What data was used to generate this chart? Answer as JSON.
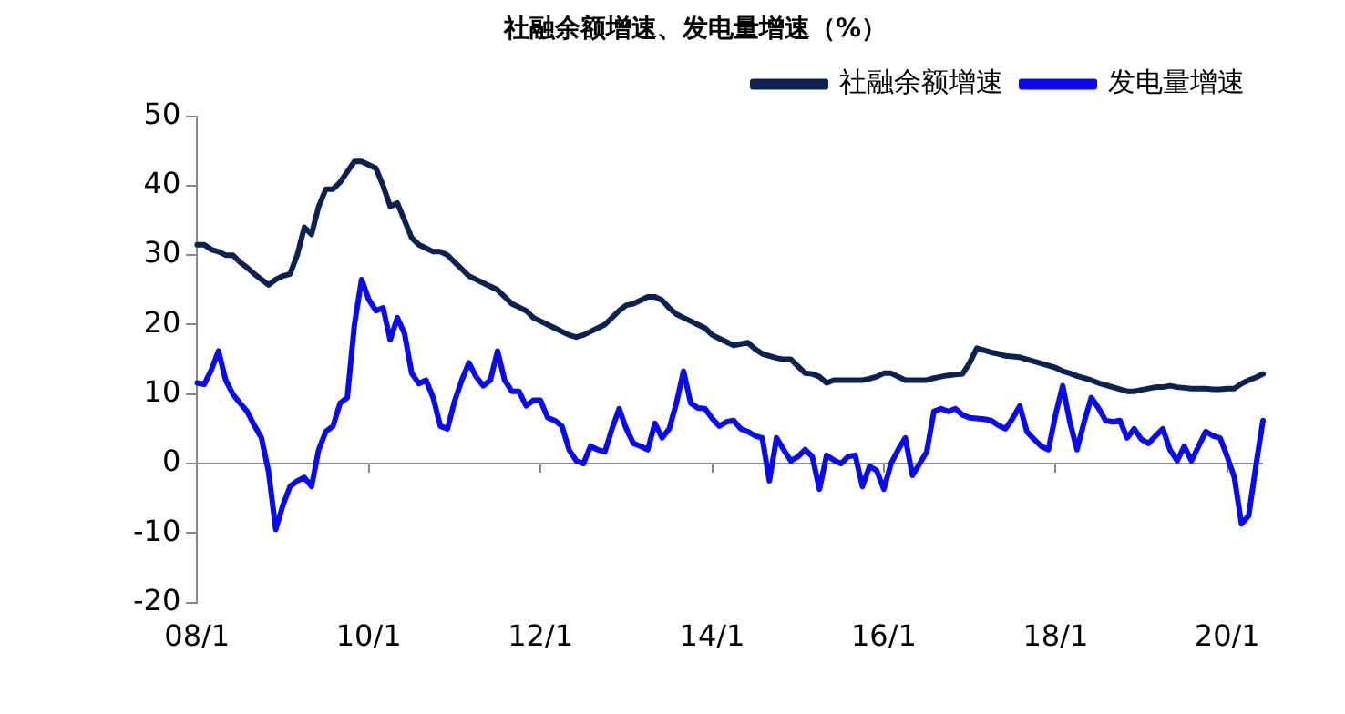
{
  "chart_data": {
    "type": "line",
    "title": "社融余额增速、发电量增速（%）",
    "categories": [
      "08/1",
      null,
      null,
      null,
      null,
      null,
      null,
      null,
      null,
      null,
      null,
      null,
      null,
      null,
      null,
      null,
      null,
      null,
      null,
      null,
      null,
      null,
      null,
      null,
      "10/1",
      null,
      null,
      null,
      null,
      null,
      null,
      null,
      null,
      null,
      null,
      null,
      null,
      null,
      null,
      null,
      null,
      null,
      null,
      null,
      null,
      null,
      null,
      null,
      "12/1",
      null,
      null,
      null,
      null,
      null,
      null,
      null,
      null,
      null,
      null,
      null,
      null,
      null,
      null,
      null,
      null,
      null,
      null,
      null,
      null,
      null,
      null,
      null,
      "14/1",
      null,
      null,
      null,
      null,
      null,
      null,
      null,
      null,
      null,
      null,
      null,
      null,
      null,
      null,
      null,
      null,
      null,
      null,
      null,
      null,
      null,
      null,
      null,
      "16/1",
      null,
      null,
      null,
      null,
      null,
      null,
      null,
      null,
      null,
      null,
      null,
      null,
      null,
      null,
      null,
      null,
      null,
      null,
      null,
      null,
      null,
      null,
      null,
      "18/1",
      null,
      null,
      null,
      null,
      null,
      null,
      null,
      null,
      null,
      null,
      null,
      null,
      null,
      null,
      null,
      null,
      null,
      null,
      null,
      null,
      null,
      null,
      null,
      "20/1",
      null,
      null,
      null,
      null,
      null
    ],
    "series": [
      {
        "name": "社融余额增速",
        "color": "#0d2150",
        "values": [
          31.5,
          31.5,
          30.8,
          30.5,
          30,
          30,
          29,
          28.2,
          27.3,
          26.5,
          25.7,
          26.5,
          27,
          27.3,
          30,
          34,
          33,
          37,
          39.5,
          39.5,
          40.5,
          42,
          43.5,
          43.5,
          43,
          42.5,
          40,
          37,
          37.5,
          35,
          32.5,
          31.5,
          31,
          30.5,
          30.5,
          30,
          29,
          28,
          27,
          26.5,
          26,
          25.5,
          25,
          24,
          23,
          22.5,
          22,
          21,
          20.5,
          20,
          19.5,
          19,
          18.5,
          18.2,
          18.5,
          19,
          19.5,
          20,
          21,
          22,
          22.8,
          23,
          23.5,
          24,
          24,
          23.5,
          22.4,
          21.5,
          21,
          20.5,
          20,
          19.5,
          18.5,
          18,
          17.5,
          17,
          17.2,
          17.4,
          16.5,
          15.8,
          15.5,
          15.2,
          15,
          15,
          14,
          13,
          12.9,
          12.5,
          11.6,
          12,
          12,
          12,
          12,
          12,
          12.2,
          12.5,
          13,
          13,
          12.5,
          12,
          12,
          12,
          12,
          12.3,
          12.5,
          12.7,
          12.8,
          12.9,
          14.5,
          16.6,
          16.3,
          16,
          15.8,
          15.5,
          15.4,
          15.3,
          15,
          14.7,
          14.4,
          14.1,
          13.8,
          13.3,
          13,
          12.6,
          12.3,
          12,
          11.6,
          11.3,
          11,
          10.7,
          10.4,
          10.4,
          10.6,
          10.8,
          11,
          11,
          11.2,
          11,
          10.9,
          10.8,
          10.8,
          10.8,
          10.7,
          10.7,
          10.8,
          10.8,
          11.5,
          12,
          12.4,
          12.9
        ]
      },
      {
        "name": "发电量增速",
        "color": "#0a0aee",
        "values": [
          11.6,
          11.4,
          13.5,
          16.2,
          12,
          10,
          8.7,
          7.5,
          5.5,
          3.7,
          -1.2,
          -9.5,
          -6,
          -3.3,
          -2.5,
          -2,
          -3.3,
          2,
          4.6,
          5.4,
          8.7,
          9.5,
          20,
          26.5,
          23.6,
          22,
          22.4,
          17.8,
          21,
          18.7,
          13,
          11.5,
          12,
          9.5,
          5.4,
          5,
          9,
          12,
          14.5,
          12.5,
          11.2,
          12,
          16.2,
          12,
          10.4,
          10.4,
          8.3,
          9.1,
          9.1,
          6.6,
          6.2,
          5.4,
          2,
          0.4,
          0,
          2.5,
          2,
          1.7,
          5,
          7.9,
          5,
          2.9,
          2.5,
          2,
          5.8,
          3.7,
          5,
          8.7,
          13.3,
          8.7,
          8,
          7.9,
          6.5,
          5.4,
          6,
          6.2,
          5,
          4.6,
          4,
          3.7,
          -2.5,
          3.7,
          2,
          0.4,
          1,
          2,
          1,
          -3.7,
          1.2,
          0.5,
          0,
          1,
          1.2,
          -3.3,
          -0.4,
          -1,
          -3.7,
          0,
          2,
          3.7,
          -1.7,
          0,
          1.7,
          7.5,
          7.9,
          7.5,
          7.9,
          7,
          6.6,
          6.5,
          6.4,
          6.2,
          5.5,
          5,
          6.5,
          8.3,
          4.6,
          3.5,
          2.5,
          2,
          7,
          11.2,
          6,
          2,
          6,
          9.5,
          8,
          6.2,
          6,
          6.2,
          3.7,
          5,
          3.5,
          2.9,
          4,
          5,
          2,
          0.4,
          2.5,
          0.4,
          2.5,
          4.6,
          4,
          3.7,
          1,
          -2,
          -8.7,
          -7.5,
          -0.4,
          6.2
        ]
      }
    ],
    "ref_lines": [
      {
        "axis": "y",
        "value": 0,
        "color": "#888888",
        "line_style": "solid"
      }
    ],
    "ylim": [
      -20,
      50
    ],
    "yticks": [
      -20,
      -10,
      0,
      10,
      20,
      30,
      40,
      50
    ],
    "grid": false,
    "legend": "top right",
    "marker": "none",
    "line_style": "solid"
  }
}
